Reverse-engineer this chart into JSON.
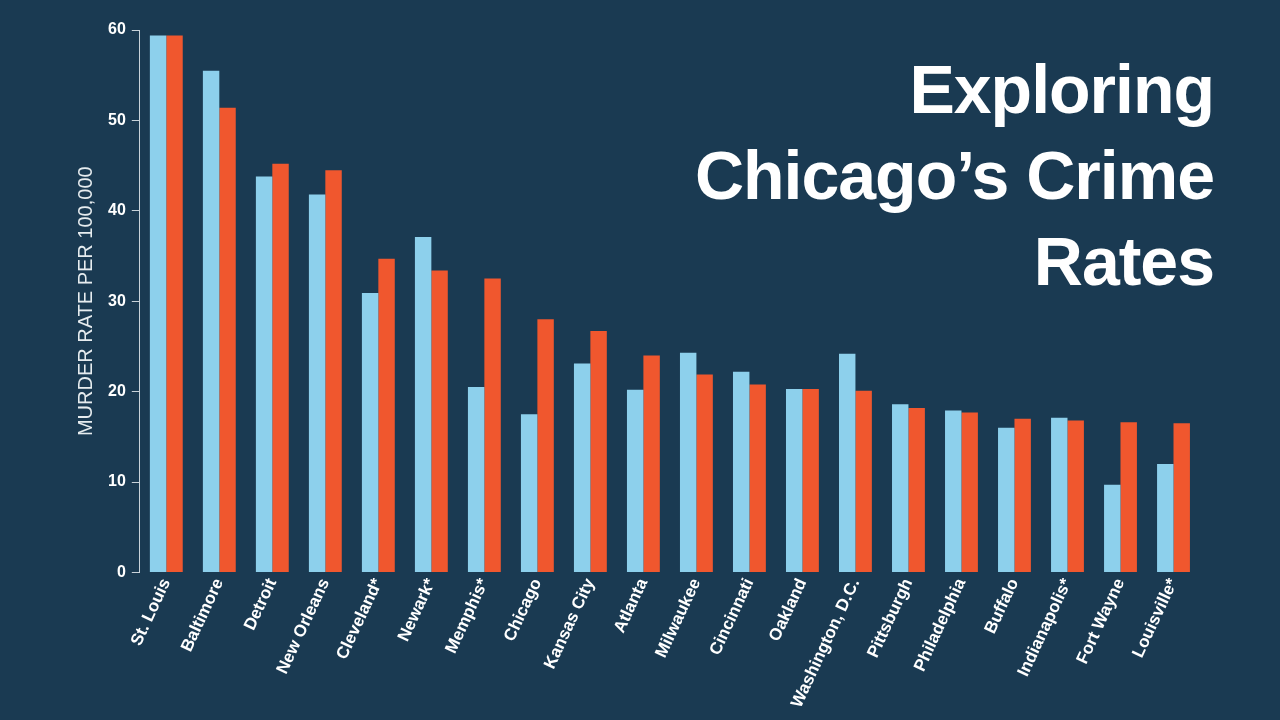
{
  "chart_data": {
    "type": "bar",
    "title": "Exploring Chicago’s Crime Rates",
    "ylabel": "MURDER RATE PER 100,000",
    "categories": [
      "St. Louis",
      "Baltimore",
      "Detroit",
      "New Orleans",
      "Cleveland*",
      "Newark*",
      "Memphis*",
      "Chicago",
      "Kansas City",
      "Atlanta",
      "Milwaukee",
      "Cincinnati",
      "Oakland",
      "Washington, D.C.",
      "Pittsburgh",
      "Philadelphia",
      "Buffalo",
      "Indianapolis*",
      "Fort Wayne",
      "Louisville*"
    ],
    "series": [
      {
        "color": "#8dd0ec",
        "values": [
          59.4,
          55.5,
          43.8,
          41.8,
          30.9,
          37.1,
          20.5,
          17.5,
          23.1,
          20.2,
          24.3,
          22.2,
          20.3,
          24.2,
          18.6,
          17.9,
          16.0,
          17.1,
          9.7,
          12.0
        ]
      },
      {
        "color": "#f0572e",
        "values": [
          59.4,
          51.4,
          45.2,
          44.5,
          34.7,
          33.4,
          32.5,
          28.0,
          26.7,
          24.0,
          21.9,
          20.8,
          20.3,
          20.1,
          18.2,
          17.7,
          17.0,
          16.8,
          16.6,
          16.5
        ]
      }
    ],
    "ylim": [
      0,
      60
    ],
    "yticks": [
      0,
      10,
      20,
      30,
      40,
      50,
      60
    ],
    "grid": false,
    "legend": false
  }
}
